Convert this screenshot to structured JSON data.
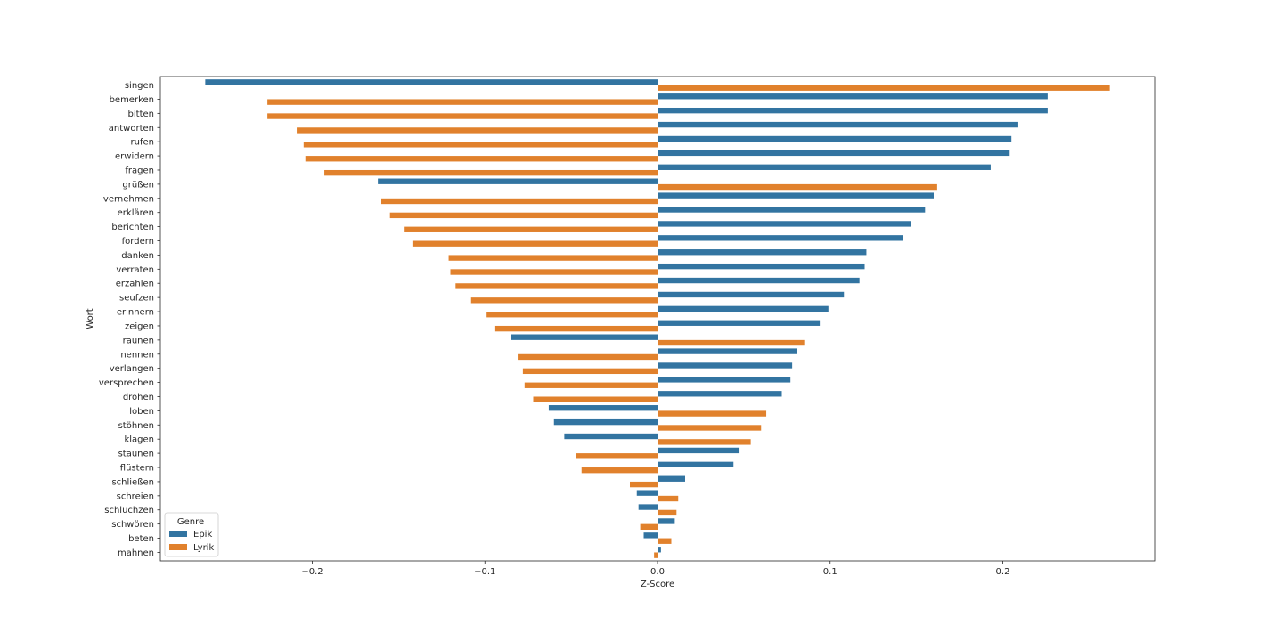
{
  "chart_data": {
    "type": "bar",
    "orientation": "horizontal",
    "xlabel": "Z-Score",
    "ylabel": "Wort",
    "xlim": [
      -0.288,
      0.288
    ],
    "xticks": [
      -0.2,
      -0.1,
      0.0,
      0.1,
      0.2
    ],
    "xtick_labels": [
      "−0.2",
      "−0.1",
      "0.0",
      "0.1",
      "0.2"
    ],
    "grid": false,
    "legend": {
      "title": "Genre",
      "placement": "lower-left"
    },
    "categories": [
      "singen",
      "bemerken",
      "bitten",
      "antworten",
      "rufen",
      "erwidern",
      "fragen",
      "grüßen",
      "vernehmen",
      "erklären",
      "berichten",
      "fordern",
      "danken",
      "verraten",
      "erzählen",
      "seufzen",
      "erinnern",
      "zeigen",
      "raunen",
      "nennen",
      "verlangen",
      "versprechen",
      "drohen",
      "loben",
      "stöhnen",
      "klagen",
      "staunen",
      "flüstern",
      "schließen",
      "schreien",
      "schluchzen",
      "schwören",
      "beten",
      "mahnen"
    ],
    "series": [
      {
        "name": "Epik",
        "color": "#3274a1",
        "values": [
          -0.262,
          0.226,
          0.226,
          0.209,
          0.205,
          0.204,
          0.193,
          -0.162,
          0.16,
          0.155,
          0.147,
          0.142,
          0.121,
          0.12,
          0.117,
          0.108,
          0.099,
          0.094,
          -0.085,
          0.081,
          0.078,
          0.077,
          0.072,
          -0.063,
          -0.06,
          -0.054,
          0.047,
          0.044,
          0.016,
          -0.012,
          -0.011,
          0.01,
          -0.008,
          0.002
        ]
      },
      {
        "name": "Lyrik",
        "color": "#e1812c",
        "values": [
          0.262,
          -0.226,
          -0.226,
          -0.209,
          -0.205,
          -0.204,
          -0.193,
          0.162,
          -0.16,
          -0.155,
          -0.147,
          -0.142,
          -0.121,
          -0.12,
          -0.117,
          -0.108,
          -0.099,
          -0.094,
          0.085,
          -0.081,
          -0.078,
          -0.077,
          -0.072,
          0.063,
          0.06,
          0.054,
          -0.047,
          -0.044,
          -0.016,
          0.012,
          0.011,
          -0.01,
          0.008,
          -0.002
        ]
      }
    ]
  }
}
